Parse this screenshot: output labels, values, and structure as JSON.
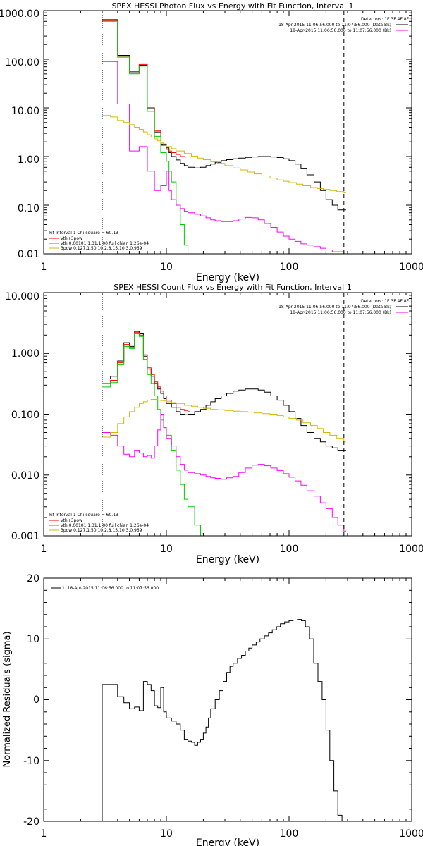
{
  "chart_data": [
    {
      "type": "line",
      "title": "SPEX HESSI Photon Flux vs Energy with Fit Function, Interval 1",
      "xlabel": "Energy (keV)",
      "ylabel": "",
      "xscale": "log",
      "yscale": "log",
      "xlim": [
        1,
        1000
      ],
      "ylim": [
        0.01,
        1000
      ],
      "xtick_labels": [
        "1",
        "10",
        "100",
        "1000"
      ],
      "ytick_labels": [
        "0.01",
        "0.10",
        "1.00",
        "10.00",
        "100.00",
        "1000.00"
      ],
      "detectors_label": "Detectors: 1F 3F 4F 8F",
      "legend_times": [
        "18-Apr-2015 11:06:56.000 to 11:07:56.000 (Data-Bk)",
        "18-Apr-2015 11:06:56.000 to 11:07:56.000 (Bk)"
      ],
      "fit_legend": [
        "Fit Interval 1    Chi-square = 60.13",
        "vth+3pow",
        "vth 0.00101,1.31,1.00  full chian 1.26e-04",
        "3pow 0.127,1.50,10.2,8.15,10.3,0.969"
      ],
      "vlines_x": [
        3,
        280
      ],
      "series": [
        {
          "name": "",
          "color": "#000000",
          "x": [
            3,
            3.5,
            4,
            4.5,
            5,
            5.5,
            6,
            6.5,
            7,
            7.5,
            8,
            8.5,
            9,
            9.5,
            10,
            10.5,
            11,
            12,
            13,
            14,
            15,
            17,
            19,
            21,
            23,
            25,
            28,
            31,
            35,
            39,
            44,
            50,
            56,
            63,
            71,
            80,
            90,
            100,
            112,
            125,
            140,
            160,
            180,
            200,
            225,
            250,
            280
          ],
          "y": [
            650,
            650,
            120,
            120,
            55,
            55,
            75,
            75,
            10,
            10,
            3.2,
            3.2,
            1.8,
            1.8,
            1.5,
            1.2,
            1.0,
            0.85,
            0.72,
            0.65,
            0.6,
            0.58,
            0.6,
            0.65,
            0.7,
            0.76,
            0.82,
            0.86,
            0.9,
            0.93,
            0.96,
            0.98,
            1.0,
            1.0,
            0.98,
            0.95,
            0.9,
            0.82,
            0.7,
            0.56,
            0.42,
            0.3,
            0.2,
            0.13,
            0.1,
            0.08,
            0.08
          ]
        },
        {
          "name": "",
          "color": "#ff0000",
          "x": [
            3,
            3.5,
            4,
            4.5,
            5,
            5.5,
            6,
            6.5,
            7,
            7.5,
            8,
            8.5,
            9,
            9.5,
            10,
            10.5,
            11,
            12,
            13,
            14
          ],
          "y": [
            620,
            620,
            115,
            115,
            52,
            52,
            78,
            78,
            9.5,
            9.5,
            3.4,
            3.4,
            1.7,
            1.7,
            1.4,
            1.3,
            1.2,
            1.1,
            1.0,
            0.98
          ]
        },
        {
          "name": "",
          "color": "#00cc00",
          "x": [
            3,
            3.5,
            4,
            4.5,
            5,
            5.5,
            6,
            6.5,
            7,
            7.5,
            8,
            8.5,
            9,
            9.5,
            10,
            10.5,
            11,
            12,
            13,
            14,
            15
          ],
          "y": [
            600,
            600,
            110,
            110,
            50,
            50,
            72,
            72,
            8.5,
            8.5,
            2.6,
            2.6,
            1.2,
            1.2,
            0.8,
            0.5,
            0.3,
            0.1,
            0.04,
            0.015,
            0.01
          ]
        },
        {
          "name": "",
          "color": "#ff00ff",
          "x": [
            3,
            3.5,
            4,
            4.5,
            5,
            5.5,
            6,
            6.5,
            7,
            7.5,
            8,
            8.5,
            9,
            9.5,
            10,
            10.5,
            11,
            12,
            13,
            14,
            15,
            17,
            19,
            21,
            23,
            25,
            28,
            31,
            35,
            39,
            44,
            50,
            56,
            63,
            71,
            80,
            90,
            100,
            112,
            125,
            140,
            160,
            180,
            200,
            225,
            250,
            280
          ],
          "y": [
            90,
            90,
            12,
            12,
            1.3,
            1.3,
            1.6,
            1.6,
            0.5,
            0.5,
            0.2,
            0.2,
            0.25,
            0.25,
            0.5,
            0.2,
            0.13,
            0.1,
            0.085,
            0.075,
            0.07,
            0.065,
            0.06,
            0.055,
            0.05,
            0.048,
            0.046,
            0.046,
            0.048,
            0.052,
            0.056,
            0.055,
            0.05,
            0.042,
            0.035,
            0.028,
            0.023,
            0.02,
            0.018,
            0.016,
            0.015,
            0.014,
            0.013,
            0.012,
            0.011,
            0.011,
            0.01
          ]
        },
        {
          "name": "",
          "color": "#d4b800",
          "x": [
            3,
            3.5,
            4,
            4.5,
            5,
            5.5,
            6,
            6.5,
            7,
            7.5,
            8,
            8.5,
            9,
            9.5,
            10,
            11,
            12,
            14,
            16,
            18,
            20,
            23,
            26,
            30,
            35,
            40,
            46,
            52,
            60,
            70,
            80,
            90,
            100,
            115,
            130,
            150,
            170,
            190,
            215,
            245,
            280
          ],
          "y": [
            7,
            6.5,
            5.5,
            5,
            4.5,
            4,
            3.6,
            3.2,
            2.8,
            2.5,
            2.3,
            2.1,
            1.9,
            1.75,
            1.6,
            1.45,
            1.3,
            1.15,
            1.02,
            0.93,
            0.86,
            0.78,
            0.72,
            0.65,
            0.58,
            0.53,
            0.48,
            0.44,
            0.4,
            0.36,
            0.33,
            0.31,
            0.29,
            0.27,
            0.25,
            0.23,
            0.22,
            0.21,
            0.2,
            0.19,
            0.18
          ]
        }
      ]
    },
    {
      "type": "line",
      "title": "SPEX HESSI Count Flux vs Energy with Fit Function, Interval 1",
      "xlabel": "Energy (keV)",
      "ylabel": "",
      "xscale": "log",
      "yscale": "log",
      "xlim": [
        1,
        1000
      ],
      "ylim": [
        0.001,
        10
      ],
      "xtick_labels": [
        "1",
        "10",
        "100",
        "1000"
      ],
      "ytick_labels": [
        "0.001",
        "0.010",
        "0.100",
        "1.000",
        "10.000"
      ],
      "detectors_label": "Detectors: 1F 3F 4F 8F",
      "legend_times": [
        "18-Apr-2015 11:06:56.000 to 11:07:56.000 (Data-Bk)",
        "18-Apr-2015 11:06:56.000 to 11:07:56.000 (Bk)"
      ],
      "fit_legend": [
        "Fit Interval 1    Chi-square = 60.13",
        "vth+3pow",
        "vth 0.00101,1.31,1.00  full chian 1.26e-04",
        "3pow 0.127,1.50,10.2,8.15,10.3,0.969"
      ],
      "vlines_x": [
        3,
        280
      ],
      "series": [
        {
          "name": "",
          "color": "#000000",
          "x": [
            3,
            3.5,
            4,
            4.5,
            5,
            5.5,
            6,
            6.5,
            7,
            7.5,
            8,
            8.5,
            9,
            9.5,
            10,
            11,
            12,
            13,
            14,
            15,
            17,
            19,
            21,
            23,
            25,
            28,
            31,
            35,
            39,
            44,
            50,
            56,
            63,
            71,
            80,
            90,
            100,
            112,
            125,
            140,
            160,
            180,
            200,
            225,
            250,
            280
          ],
          "y": [
            0.38,
            0.42,
            0.75,
            1.5,
            1.3,
            2.3,
            2.1,
            0.9,
            0.55,
            0.42,
            0.32,
            0.26,
            0.22,
            0.18,
            0.15,
            0.13,
            0.11,
            0.1,
            0.098,
            0.1,
            0.11,
            0.12,
            0.14,
            0.16,
            0.18,
            0.2,
            0.22,
            0.24,
            0.25,
            0.26,
            0.26,
            0.25,
            0.23,
            0.2,
            0.17,
            0.14,
            0.11,
            0.085,
            0.065,
            0.05,
            0.04,
            0.035,
            0.03,
            0.028,
            0.025,
            0.025
          ]
        },
        {
          "name": "",
          "color": "#ff0000",
          "x": [
            3,
            3.5,
            4,
            4.5,
            5,
            5.5,
            6,
            6.5,
            7,
            7.5,
            8,
            8.5,
            9,
            9.5,
            10,
            11,
            12,
            13,
            14,
            15
          ],
          "y": [
            0.32,
            0.36,
            0.7,
            1.4,
            1.25,
            2.2,
            2.0,
            0.95,
            0.58,
            0.45,
            0.34,
            0.28,
            0.24,
            0.2,
            0.17,
            0.15,
            0.13,
            0.12,
            0.115,
            0.11
          ]
        },
        {
          "name": "",
          "color": "#00cc00",
          "x": [
            3,
            3.5,
            4,
            4.5,
            5,
            5.5,
            6,
            6.5,
            7,
            7.5,
            8,
            8.5,
            9,
            9.5,
            10,
            11,
            12,
            13,
            14,
            15,
            17,
            19,
            21
          ],
          "y": [
            0.28,
            0.33,
            0.65,
            1.3,
            1.2,
            2.1,
            1.9,
            0.8,
            0.45,
            0.32,
            0.2,
            0.12,
            0.08,
            0.06,
            0.045,
            0.025,
            0.012,
            0.007,
            0.004,
            0.003,
            0.0015,
            0.001,
            0.001
          ]
        },
        {
          "name": "",
          "color": "#ff00ff",
          "x": [
            3,
            3.5,
            4,
            4.5,
            5,
            5.5,
            6,
            6.5,
            7,
            7.5,
            8,
            8.5,
            9,
            9.5,
            10,
            11,
            12,
            13,
            14,
            15,
            17,
            19,
            21,
            23,
            25,
            28,
            31,
            35,
            39,
            44,
            50,
            56,
            63,
            71,
            80,
            90,
            100,
            112,
            125,
            140,
            160,
            180,
            200,
            225,
            250,
            280
          ],
          "y": [
            0.05,
            0.045,
            0.03,
            0.022,
            0.02,
            0.025,
            0.023,
            0.02,
            0.021,
            0.019,
            0.03,
            0.055,
            0.1,
            0.06,
            0.04,
            0.03,
            0.02,
            0.015,
            0.012,
            0.011,
            0.0105,
            0.01,
            0.0095,
            0.009,
            0.0088,
            0.0085,
            0.009,
            0.0095,
            0.011,
            0.013,
            0.0145,
            0.015,
            0.0142,
            0.013,
            0.0118,
            0.0105,
            0.0092,
            0.008,
            0.0068,
            0.0055,
            0.0045,
            0.0035,
            0.0028,
            0.002,
            0.0015,
            0.0012
          ]
        },
        {
          "name": "",
          "color": "#d4b800",
          "x": [
            3,
            3.5,
            4,
            4.5,
            5,
            5.5,
            6,
            6.5,
            7,
            7.5,
            8,
            8.5,
            9,
            9.5,
            10,
            11,
            12,
            14,
            16,
            18,
            20,
            23,
            26,
            30,
            35,
            40,
            46,
            52,
            60,
            70,
            80,
            90,
            100,
            115,
            130,
            150,
            170,
            190,
            215,
            245,
            280
          ],
          "y": [
            0.042,
            0.05,
            0.07,
            0.09,
            0.11,
            0.13,
            0.15,
            0.16,
            0.17,
            0.175,
            0.175,
            0.17,
            0.168,
            0.165,
            0.16,
            0.155,
            0.15,
            0.14,
            0.135,
            0.13,
            0.125,
            0.12,
            0.118,
            0.115,
            0.112,
            0.11,
            0.108,
            0.105,
            0.102,
            0.1,
            0.095,
            0.09,
            0.085,
            0.08,
            0.072,
            0.065,
            0.058,
            0.05,
            0.045,
            0.04,
            0.035
          ]
        }
      ]
    },
    {
      "type": "line",
      "title": "",
      "xlabel": "Energy (keV)",
      "ylabel": "Normalized Residuals (sigma)",
      "xscale": "log",
      "yscale": "linear",
      "xlim": [
        1,
        1000
      ],
      "ylim": [
        -20,
        20
      ],
      "xtick_labels": [
        "1",
        "10",
        "100",
        "1000"
      ],
      "ytick_labels": [
        "-20",
        "-10",
        "0",
        "10",
        "20"
      ],
      "legend_entry": "1. 18-Apr-2015 11:06:56.000 to 11:07:56.000",
      "series": [
        {
          "name": "1. 18-Apr-2015 11:06:56.000 to 11:07:56.000",
          "color": "#000000",
          "x": [
            3,
            3.5,
            4,
            4.5,
            5,
            5.5,
            6,
            6.5,
            7,
            7.5,
            8,
            8.5,
            9,
            9.5,
            10,
            11,
            12,
            13,
            14,
            15,
            16,
            17,
            18,
            19,
            20,
            21,
            22,
            23,
            25,
            27,
            29,
            31,
            33,
            35,
            38,
            41,
            44,
            47,
            50,
            54,
            58,
            63,
            68,
            73,
            79,
            85,
            92,
            100,
            108,
            117,
            126,
            136,
            147,
            159,
            172,
            186,
            200,
            215,
            232,
            250,
            270,
            280
          ],
          "y": [
            2.5,
            2.5,
            0.5,
            -0.5,
            -1.5,
            -1.2,
            -1.8,
            3,
            2.5,
            1.5,
            -1,
            -1.3,
            2,
            -2,
            -3,
            -3.5,
            -4,
            -5,
            -6.5,
            -6.8,
            -7,
            -7.5,
            -7,
            -6.5,
            -5.5,
            -4.5,
            -3,
            -1.5,
            0,
            1.5,
            3,
            4.5,
            5.5,
            6,
            6.8,
            7.3,
            8,
            8.5,
            9,
            9.5,
            10,
            10.5,
            11,
            11.5,
            12,
            12.5,
            12.8,
            13,
            13.1,
            13.2,
            13,
            12,
            10,
            6,
            3,
            0,
            -5,
            -10,
            -15,
            -19,
            -20,
            -20
          ]
        }
      ]
    }
  ]
}
